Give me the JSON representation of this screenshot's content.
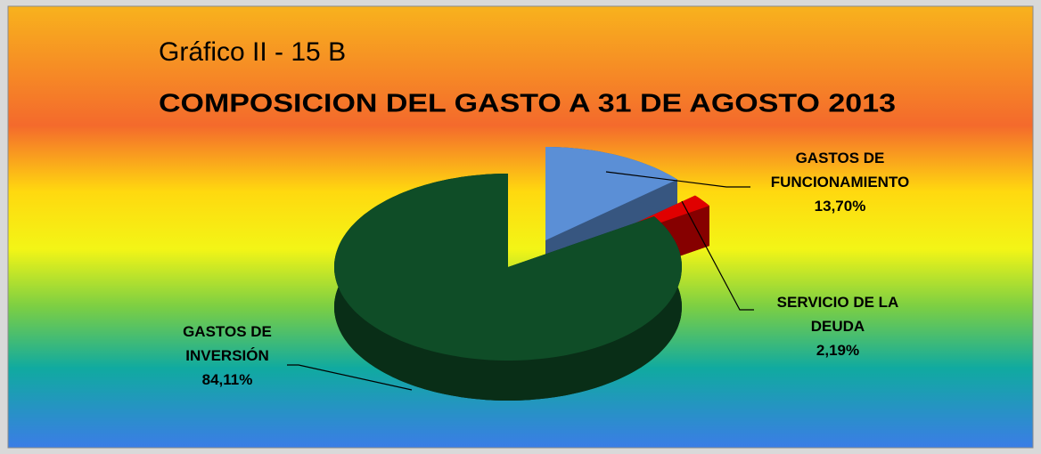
{
  "chart_data": {
    "type": "pie",
    "title": "Gráfico II - 15 B",
    "subtitle": "COMPOSICION DEL GASTO A 31 DE AGOSTO 2013",
    "categories": [
      "GASTOS DE FUNCIONAMIENTO",
      "SERVICIO DE LA DEUDA",
      "GASTOS DE INVERSIÓN"
    ],
    "values": [
      13.7,
      2.19,
      84.11
    ],
    "value_labels": [
      "13,70%",
      "2,19%",
      "84,11%"
    ],
    "colors": [
      "#5b8fd6",
      "#e00000",
      "#0f4d27"
    ]
  }
}
